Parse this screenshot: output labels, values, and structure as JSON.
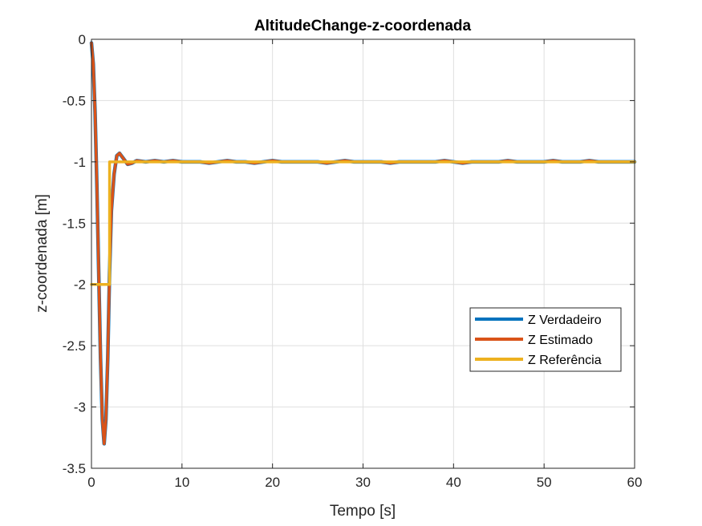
{
  "chart_data": {
    "type": "line",
    "title": "AltitudeChange-z-coordenada",
    "xlabel": "Tempo [s]",
    "ylabel": "z-coordenada [m]",
    "xlim": [
      0,
      60
    ],
    "ylim": [
      -3.5,
      0
    ],
    "xticks": [
      0,
      10,
      20,
      30,
      40,
      50,
      60
    ],
    "xtick_labels": [
      "0",
      "10",
      "20",
      "30",
      "40",
      "50",
      "60"
    ],
    "yticks": [
      0,
      -0.5,
      -1,
      -1.5,
      -2,
      -2.5,
      -3,
      -3.5
    ],
    "ytick_labels": [
      "0",
      "-0.5",
      "-1",
      "-1.5",
      "-2",
      "-2.5",
      "-3",
      "-3.5"
    ],
    "grid": true,
    "legend_position": "right",
    "series": [
      {
        "name": "Z Verdadeiro",
        "color": "#0072BD",
        "x": [
          0,
          0.2,
          0.4,
          0.6,
          0.8,
          1.0,
          1.2,
          1.4,
          1.6,
          1.8,
          2.0,
          2.2,
          2.5,
          2.8,
          3.1,
          3.5,
          4,
          4.5,
          5,
          6,
          7,
          8,
          9,
          10,
          11,
          12,
          13,
          14,
          15,
          16,
          17,
          18,
          19,
          20,
          21,
          22,
          23,
          24,
          25,
          26,
          27,
          28,
          29,
          30,
          31,
          32,
          33,
          34,
          35,
          36,
          37,
          38,
          39,
          40,
          41,
          42,
          43,
          44,
          45,
          46,
          47,
          48,
          49,
          50,
          51,
          52,
          53,
          54,
          55,
          56,
          57,
          58,
          59,
          60
        ],
        "y": [
          -0.03,
          -0.2,
          -0.6,
          -1.2,
          -1.9,
          -2.6,
          -3.1,
          -3.3,
          -3.1,
          -2.6,
          -1.9,
          -1.4,
          -1.1,
          -0.95,
          -0.93,
          -0.97,
          -1.02,
          -1.01,
          -0.99,
          -1.0,
          -0.99,
          -1.0,
          -0.99,
          -1.0,
          -1.0,
          -1.0,
          -1.01,
          -1.0,
          -0.99,
          -1.0,
          -1.0,
          -1.01,
          -1.0,
          -0.99,
          -1.0,
          -1.0,
          -1.0,
          -1.0,
          -1.0,
          -1.01,
          -1.0,
          -0.99,
          -1.0,
          -1.0,
          -1.0,
          -1.0,
          -1.01,
          -1.0,
          -1.0,
          -1.0,
          -1.0,
          -1.0,
          -0.99,
          -1.0,
          -1.01,
          -1.0,
          -1.0,
          -1.0,
          -1.0,
          -0.99,
          -1.0,
          -1.0,
          -1.0,
          -1.0,
          -0.99,
          -1.0,
          -1.0,
          -1.0,
          -0.99,
          -1.0,
          -1.0,
          -1.0,
          -1.0,
          -1.0
        ]
      },
      {
        "name": "Z Estimado",
        "color": "#D95319",
        "x": [
          0,
          0.2,
          0.4,
          0.6,
          0.8,
          1.0,
          1.2,
          1.4,
          1.6,
          1.8,
          2.0,
          2.2,
          2.5,
          2.8,
          3.1,
          3.5,
          4,
          4.5,
          5,
          6,
          7,
          8,
          9,
          10,
          11,
          12,
          13,
          14,
          15,
          16,
          17,
          18,
          19,
          20,
          21,
          22,
          23,
          24,
          25,
          26,
          27,
          28,
          29,
          30,
          31,
          32,
          33,
          34,
          35,
          36,
          37,
          38,
          39,
          40,
          41,
          42,
          43,
          44,
          45,
          46,
          47,
          48,
          49,
          50,
          51,
          52,
          53,
          54,
          55,
          56,
          57,
          58,
          59,
          60
        ],
        "y": [
          -0.03,
          -0.2,
          -0.6,
          -1.2,
          -1.9,
          -2.6,
          -3.1,
          -3.3,
          -3.1,
          -2.6,
          -1.9,
          -1.4,
          -1.1,
          -0.95,
          -0.93,
          -0.97,
          -1.02,
          -1.01,
          -0.99,
          -1.0,
          -0.99,
          -1.0,
          -0.99,
          -1.0,
          -1.0,
          -1.0,
          -1.01,
          -1.0,
          -0.99,
          -1.0,
          -1.0,
          -1.01,
          -1.0,
          -0.99,
          -1.0,
          -1.0,
          -1.0,
          -1.0,
          -1.0,
          -1.01,
          -1.0,
          -0.99,
          -1.0,
          -1.0,
          -1.0,
          -1.0,
          -1.01,
          -1.0,
          -1.0,
          -1.0,
          -1.0,
          -1.0,
          -0.99,
          -1.0,
          -1.01,
          -1.0,
          -1.0,
          -1.0,
          -1.0,
          -0.99,
          -1.0,
          -1.0,
          -1.0,
          -1.0,
          -0.99,
          -1.0,
          -1.0,
          -1.0,
          -0.99,
          -1.0,
          -1.0,
          -1.0,
          -1.0,
          -1.0
        ]
      },
      {
        "name": "Z Referência",
        "color": "#EDB120",
        "x": [
          0,
          2,
          2,
          60
        ],
        "y": [
          -2,
          -2,
          -1,
          -1
        ]
      }
    ]
  }
}
